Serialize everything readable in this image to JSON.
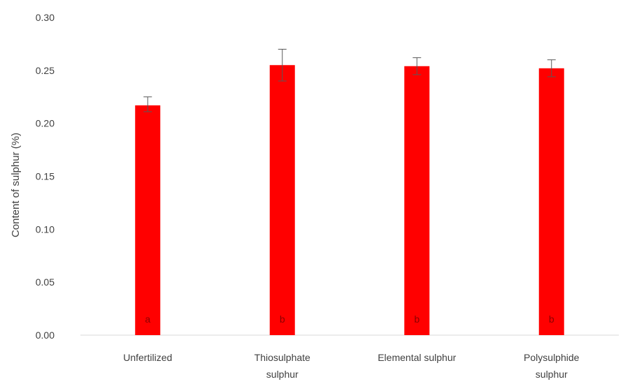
{
  "chart_data": {
    "type": "bar",
    "title": "",
    "xlabel": "",
    "ylabel": "Content of sulphur (%)",
    "ylim": [
      0,
      0.3
    ],
    "yticks": [
      "0.00",
      "0.05",
      "0.10",
      "0.15",
      "0.20",
      "0.25",
      "0.30"
    ],
    "grid": false,
    "legend": "none",
    "bar_color": "#ff0000",
    "categories": [
      [
        "Unfertilized"
      ],
      [
        "Thiosulphate",
        "sulphur"
      ],
      [
        "Elemental sulphur"
      ],
      [
        "Polysulphide",
        "sulphur"
      ]
    ],
    "values": [
      0.217,
      0.255,
      0.254,
      0.252
    ],
    "error_low": [
      0.211,
      0.24,
      0.246,
      0.244
    ],
    "error_high": [
      0.225,
      0.27,
      0.262,
      0.26
    ],
    "letters": [
      "a",
      "b",
      "b",
      "b"
    ]
  }
}
